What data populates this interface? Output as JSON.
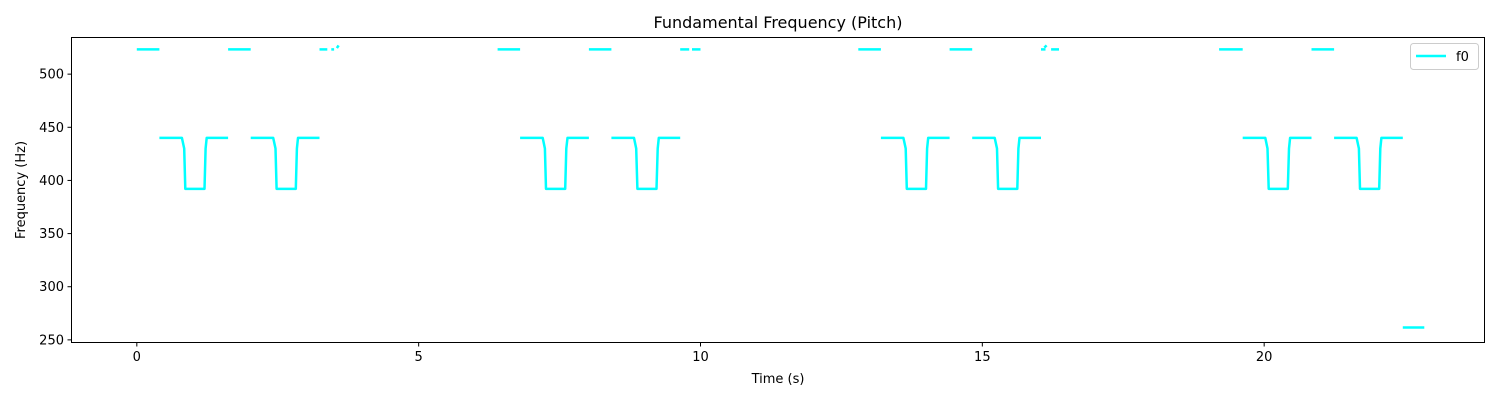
{
  "chart_data": {
    "type": "line",
    "title": "Fundamental Frequency (Pitch)",
    "xlabel": "Time (s)",
    "ylabel": "Frequency (Hz)",
    "xlim": [
      -1.15,
      23.9
    ],
    "ylim": [
      248,
      534
    ],
    "xticks": [
      0,
      5,
      10,
      15,
      20
    ],
    "yticks": [
      250,
      300,
      350,
      400,
      450,
      500
    ],
    "grid": false,
    "legend_position": "top-right",
    "series": [
      {
        "name": "f0",
        "color": "#00ffff",
        "segments": [
          [
            [
              0.0,
              523.3
            ],
            [
              0.4,
              523.3
            ]
          ],
          [
            [
              0.4,
              440.0
            ],
            [
              0.8,
              440.0
            ],
            [
              0.84,
              430.0
            ],
            [
              0.86,
              392.0
            ],
            [
              1.2,
              392.0
            ],
            [
              1.22,
              430.0
            ],
            [
              1.24,
              440.0
            ],
            [
              1.62,
              440.0
            ]
          ],
          [
            [
              1.62,
              523.3
            ],
            [
              2.02,
              523.3
            ]
          ],
          [
            [
              2.02,
              440.0
            ],
            [
              2.42,
              440.0
            ],
            [
              2.46,
              430.0
            ],
            [
              2.48,
              392.0
            ],
            [
              2.82,
              392.0
            ],
            [
              2.84,
              430.0
            ],
            [
              2.86,
              440.0
            ],
            [
              3.24,
              440.0
            ]
          ],
          [
            [
              3.24,
              523.3
            ],
            [
              3.38,
              523.3
            ]
          ],
          [
            [
              3.45,
              523.3
            ],
            [
              3.5,
              523.3
            ]
          ],
          [
            [
              3.55,
              524.5
            ],
            [
              3.58,
              527.0
            ]
          ],
          [
            [
              6.4,
              523.3
            ],
            [
              6.8,
              523.3
            ]
          ],
          [
            [
              6.8,
              440.0
            ],
            [
              7.2,
              440.0
            ],
            [
              7.24,
              430.0
            ],
            [
              7.26,
              392.0
            ],
            [
              7.6,
              392.0
            ],
            [
              7.62,
              430.0
            ],
            [
              7.64,
              440.0
            ],
            [
              8.02,
              440.0
            ]
          ],
          [
            [
              8.02,
              523.3
            ],
            [
              8.42,
              523.3
            ]
          ],
          [
            [
              8.42,
              440.0
            ],
            [
              8.82,
              440.0
            ],
            [
              8.86,
              430.0
            ],
            [
              8.88,
              392.0
            ],
            [
              9.22,
              392.0
            ],
            [
              9.24,
              430.0
            ],
            [
              9.26,
              440.0
            ],
            [
              9.64,
              440.0
            ]
          ],
          [
            [
              9.64,
              523.3
            ],
            [
              9.8,
              523.3
            ]
          ],
          [
            [
              9.85,
              523.3
            ],
            [
              10.0,
              523.3
            ]
          ],
          [
            [
              12.8,
              523.3
            ],
            [
              13.2,
              523.3
            ]
          ],
          [
            [
              13.2,
              440.0
            ],
            [
              13.6,
              440.0
            ],
            [
              13.64,
              430.0
            ],
            [
              13.66,
              392.0
            ],
            [
              14.0,
              392.0
            ],
            [
              14.02,
              430.0
            ],
            [
              14.04,
              440.0
            ],
            [
              14.42,
              440.0
            ]
          ],
          [
            [
              14.42,
              523.3
            ],
            [
              14.82,
              523.3
            ]
          ],
          [
            [
              14.82,
              440.0
            ],
            [
              15.22,
              440.0
            ],
            [
              15.26,
              430.0
            ],
            [
              15.28,
              392.0
            ],
            [
              15.62,
              392.0
            ],
            [
              15.64,
              430.0
            ],
            [
              15.66,
              440.0
            ],
            [
              16.04,
              440.0
            ]
          ],
          [
            [
              16.04,
              523.3
            ],
            [
              16.12,
              523.3
            ]
          ],
          [
            [
              16.1,
              525.0
            ],
            [
              16.14,
              527.0
            ]
          ],
          [
            [
              16.22,
              523.3
            ],
            [
              16.36,
              523.3
            ]
          ],
          [
            [
              19.2,
              523.3
            ],
            [
              19.62,
              523.3
            ]
          ],
          [
            [
              19.62,
              440.0
            ],
            [
              20.02,
              440.0
            ],
            [
              20.06,
              430.0
            ],
            [
              20.08,
              392.0
            ],
            [
              20.42,
              392.0
            ],
            [
              20.44,
              430.0
            ],
            [
              20.46,
              440.0
            ],
            [
              20.84,
              440.0
            ]
          ],
          [
            [
              20.84,
              523.3
            ],
            [
              21.24,
              523.3
            ]
          ],
          [
            [
              21.24,
              440.0
            ],
            [
              21.64,
              440.0
            ],
            [
              21.68,
              430.0
            ],
            [
              21.7,
              392.0
            ],
            [
              22.04,
              392.0
            ],
            [
              22.06,
              430.0
            ],
            [
              22.08,
              440.0
            ],
            [
              22.46,
              440.0
            ]
          ],
          [
            [
              22.46,
              261.6
            ],
            [
              22.84,
              261.6
            ]
          ]
        ]
      }
    ]
  }
}
